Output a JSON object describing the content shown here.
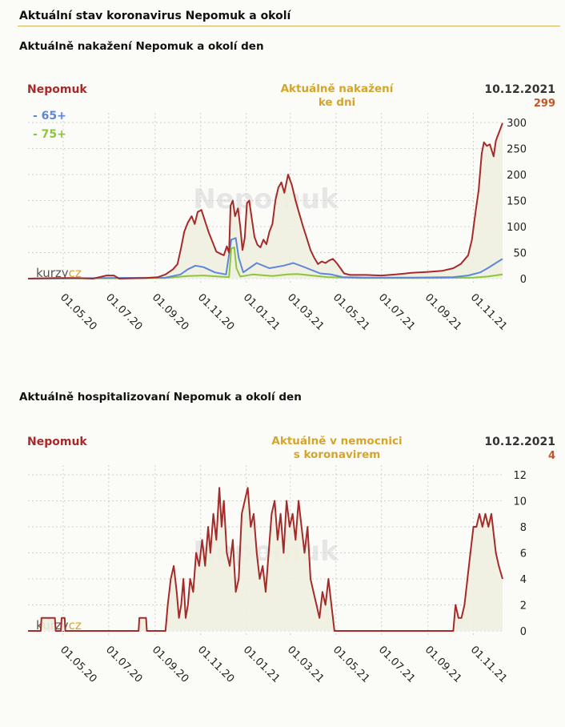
{
  "page": {
    "title": "Aktuální stav koronavirus Nepomuk a okolí"
  },
  "chart_data": [
    {
      "type": "line",
      "section_title": "Aktuálně nakažení Nepomuk a okolí den",
      "location": "Nepomuk",
      "caption_line1": "Aktuálně nakažení",
      "caption_line2": "ke dni",
      "date": "10.12.2021",
      "current_value": "299",
      "watermark": "Nepomuk",
      "brand": "kurzy",
      "brand_suffix": "cz",
      "ylim": [
        0,
        300
      ],
      "yticks": [
        "0",
        "50",
        "100",
        "150",
        "200",
        "250",
        "300"
      ],
      "xtick_labels": [
        "01.05.20",
        "01.07.20",
        "01.09.20",
        "01.11.20",
        "01.01.21",
        "01.03.21",
        "01.05.21",
        "01.07.21",
        "01.09.21",
        "01.11.21"
      ],
      "xtick_dates": [
        "2020-05-01",
        "2020-07-01",
        "2020-09-01",
        "2020-11-01",
        "2021-01-01",
        "2021-03-01",
        "2021-05-01",
        "2021-07-01",
        "2021-09-01",
        "2021-11-01"
      ],
      "x_range": [
        "2020-03-15",
        "2021-12-10"
      ],
      "colors": {
        "main": "#a52b2b",
        "s65": "#5e86d8",
        "s75": "#8cc63a",
        "fill": "#efefe0"
      },
      "series": [
        {
          "name": "Nepomuk",
          "points": [
            [
              "2020-03-15",
              0
            ],
            [
              "2020-04-20",
              1
            ],
            [
              "2020-05-20",
              1
            ],
            [
              "2020-06-10",
              0
            ],
            [
              "2020-06-28",
              6
            ],
            [
              "2020-07-08",
              6
            ],
            [
              "2020-07-15",
              0
            ],
            [
              "2020-08-20",
              1
            ],
            [
              "2020-09-05",
              3
            ],
            [
              "2020-09-15",
              8
            ],
            [
              "2020-09-25",
              18
            ],
            [
              "2020-10-01",
              28
            ],
            [
              "2020-10-06",
              60
            ],
            [
              "2020-10-10",
              90
            ],
            [
              "2020-10-15",
              108
            ],
            [
              "2020-10-20",
              120
            ],
            [
              "2020-10-24",
              105
            ],
            [
              "2020-10-28",
              128
            ],
            [
              "2020-11-02",
              132
            ],
            [
              "2020-11-07",
              110
            ],
            [
              "2020-11-12",
              88
            ],
            [
              "2020-11-17",
              70
            ],
            [
              "2020-11-22",
              52
            ],
            [
              "2020-11-27",
              48
            ],
            [
              "2020-12-02",
              45
            ],
            [
              "2020-12-06",
              62
            ],
            [
              "2020-12-09",
              50
            ],
            [
              "2020-12-11",
              140
            ],
            [
              "2020-12-14",
              150
            ],
            [
              "2020-12-17",
              120
            ],
            [
              "2020-12-21",
              135
            ],
            [
              "2020-12-24",
              100
            ],
            [
              "2020-12-27",
              55
            ],
            [
              "2020-12-30",
              78
            ],
            [
              "2021-01-02",
              145
            ],
            [
              "2021-01-05",
              150
            ],
            [
              "2021-01-08",
              120
            ],
            [
              "2021-01-12",
              80
            ],
            [
              "2021-01-16",
              65
            ],
            [
              "2021-01-20",
              60
            ],
            [
              "2021-01-24",
              75
            ],
            [
              "2021-01-28",
              66
            ],
            [
              "2021-02-01",
              90
            ],
            [
              "2021-02-05",
              105
            ],
            [
              "2021-02-09",
              150
            ],
            [
              "2021-02-13",
              175
            ],
            [
              "2021-02-17",
              185
            ],
            [
              "2021-02-21",
              165
            ],
            [
              "2021-02-26",
              200
            ],
            [
              "2021-03-03",
              180
            ],
            [
              "2021-03-08",
              150
            ],
            [
              "2021-03-13",
              125
            ],
            [
              "2021-03-18",
              100
            ],
            [
              "2021-03-23",
              78
            ],
            [
              "2021-03-28",
              55
            ],
            [
              "2021-04-02",
              40
            ],
            [
              "2021-04-07",
              28
            ],
            [
              "2021-04-12",
              33
            ],
            [
              "2021-04-17",
              30
            ],
            [
              "2021-04-22",
              35
            ],
            [
              "2021-04-27",
              38
            ],
            [
              "2021-05-02",
              30
            ],
            [
              "2021-05-07",
              20
            ],
            [
              "2021-05-12",
              10
            ],
            [
              "2021-05-20",
              7
            ],
            [
              "2021-06-10",
              7
            ],
            [
              "2021-07-01",
              6
            ],
            [
              "2021-07-20",
              8
            ],
            [
              "2021-08-10",
              11
            ],
            [
              "2021-09-01",
              13
            ],
            [
              "2021-09-20",
              15
            ],
            [
              "2021-10-05",
              20
            ],
            [
              "2021-10-15",
              28
            ],
            [
              "2021-10-25",
              45
            ],
            [
              "2021-10-30",
              75
            ],
            [
              "2021-11-04",
              130
            ],
            [
              "2021-11-08",
              170
            ],
            [
              "2021-11-12",
              240
            ],
            [
              "2021-11-15",
              262
            ],
            [
              "2021-11-19",
              255
            ],
            [
              "2021-11-23",
              258
            ],
            [
              "2021-11-28",
              235
            ],
            [
              "2021-12-01",
              265
            ],
            [
              "2021-12-05",
              280
            ],
            [
              "2021-12-10",
              299
            ]
          ]
        },
        {
          "name": "65+",
          "points": [
            [
              "2020-03-15",
              0
            ],
            [
              "2020-09-15",
              2
            ],
            [
              "2020-10-05",
              8
            ],
            [
              "2020-10-15",
              18
            ],
            [
              "2020-10-25",
              25
            ],
            [
              "2020-11-05",
              22
            ],
            [
              "2020-11-20",
              12
            ],
            [
              "2020-12-05",
              8
            ],
            [
              "2020-12-12",
              75
            ],
            [
              "2020-12-18",
              78
            ],
            [
              "2020-12-22",
              40
            ],
            [
              "2020-12-28",
              12
            ],
            [
              "2021-01-05",
              20
            ],
            [
              "2021-01-15",
              30
            ],
            [
              "2021-02-01",
              20
            ],
            [
              "2021-02-20",
              25
            ],
            [
              "2021-03-05",
              30
            ],
            [
              "2021-03-20",
              22
            ],
            [
              "2021-04-10",
              10
            ],
            [
              "2021-04-25",
              8
            ],
            [
              "2021-05-10",
              3
            ],
            [
              "2021-06-10",
              2
            ],
            [
              "2021-08-10",
              2
            ],
            [
              "2021-10-05",
              3
            ],
            [
              "2021-10-25",
              6
            ],
            [
              "2021-11-10",
              12
            ],
            [
              "2021-11-20",
              20
            ],
            [
              "2021-12-01",
              30
            ],
            [
              "2021-12-10",
              38
            ]
          ]
        },
        {
          "name": "75+",
          "points": [
            [
              "2020-03-15",
              0
            ],
            [
              "2020-09-15",
              1
            ],
            [
              "2020-10-15",
              5
            ],
            [
              "2020-11-05",
              6
            ],
            [
              "2020-11-25",
              4
            ],
            [
              "2020-12-09",
              3
            ],
            [
              "2020-12-12",
              58
            ],
            [
              "2020-12-16",
              60
            ],
            [
              "2020-12-19",
              20
            ],
            [
              "2020-12-24",
              4
            ],
            [
              "2021-01-10",
              8
            ],
            [
              "2021-02-05",
              5
            ],
            [
              "2021-02-25",
              8
            ],
            [
              "2021-03-10",
              9
            ],
            [
              "2021-03-30",
              6
            ],
            [
              "2021-04-20",
              3
            ],
            [
              "2021-06-01",
              1
            ],
            [
              "2021-09-01",
              1
            ],
            [
              "2021-11-01",
              2
            ],
            [
              "2021-11-20",
              4
            ],
            [
              "2021-12-10",
              8
            ]
          ]
        }
      ],
      "legend": [
        {
          "label": "- 65+"
        },
        {
          "label": "- 75+"
        }
      ]
    },
    {
      "type": "line",
      "section_title": "Aktuálně hospitalizovaní Nepomuk a okolí den",
      "location": "Nepomuk",
      "caption_line1": "Aktuálně v nemocnici",
      "caption_line2": "s koronavirem",
      "date": "10.12.2021",
      "current_value": "4",
      "watermark": "Nepomuk",
      "brand": "kurzy",
      "brand_suffix": "cz",
      "ylim": [
        0,
        12
      ],
      "yticks": [
        "0",
        "2",
        "4",
        "6",
        "8",
        "10",
        "12"
      ],
      "xtick_labels": [
        "01.05.20",
        "01.07.20",
        "01.09.20",
        "01.11.20",
        "01.01.21",
        "01.03.21",
        "01.05.21",
        "01.07.21",
        "01.09.21",
        "01.11.21"
      ],
      "xtick_dates": [
        "2020-05-01",
        "2020-07-01",
        "2020-09-01",
        "2020-11-01",
        "2021-01-01",
        "2021-03-01",
        "2021-05-01",
        "2021-07-01",
        "2021-09-01",
        "2021-11-01"
      ],
      "x_range": [
        "2020-03-15",
        "2021-12-10"
      ],
      "colors": {
        "main": "#a52b2b",
        "fill": "#efefe0"
      },
      "series": [
        {
          "name": "Nepomuk",
          "points": [
            [
              "2020-03-15",
              0
            ],
            [
              "2020-04-01",
              0
            ],
            [
              "2020-04-02",
              1
            ],
            [
              "2020-04-20",
              1
            ],
            [
              "2020-04-21",
              0
            ],
            [
              "2020-04-28",
              0
            ],
            [
              "2020-04-29",
              1
            ],
            [
              "2020-05-03",
              1
            ],
            [
              "2020-05-04",
              0
            ],
            [
              "2020-08-10",
              0
            ],
            [
              "2020-08-11",
              1
            ],
            [
              "2020-08-20",
              1
            ],
            [
              "2020-08-21",
              0
            ],
            [
              "2020-09-15",
              0
            ],
            [
              "2020-09-18",
              2
            ],
            [
              "2020-09-22",
              4
            ],
            [
              "2020-09-26",
              5
            ],
            [
              "2020-09-30",
              3
            ],
            [
              "2020-10-03",
              1
            ],
            [
              "2020-10-06",
              2
            ],
            [
              "2020-10-09",
              4
            ],
            [
              "2020-10-12",
              1
            ],
            [
              "2020-10-15",
              2
            ],
            [
              "2020-10-18",
              4
            ],
            [
              "2020-10-22",
              3
            ],
            [
              "2020-10-26",
              6
            ],
            [
              "2020-10-30",
              5
            ],
            [
              "2020-11-03",
              7
            ],
            [
              "2020-11-07",
              5
            ],
            [
              "2020-11-11",
              8
            ],
            [
              "2020-11-14",
              6
            ],
            [
              "2020-11-18",
              9
            ],
            [
              "2020-11-22",
              7
            ],
            [
              "2020-11-26",
              11
            ],
            [
              "2020-11-29",
              8
            ],
            [
              "2020-12-02",
              10
            ],
            [
              "2020-12-06",
              6
            ],
            [
              "2020-12-10",
              5
            ],
            [
              "2020-12-14",
              7
            ],
            [
              "2020-12-18",
              3
            ],
            [
              "2020-12-22",
              4
            ],
            [
              "2020-12-26",
              9
            ],
            [
              "2020-12-30",
              10
            ],
            [
              "2021-01-03",
              11
            ],
            [
              "2021-01-07",
              8
            ],
            [
              "2021-01-11",
              9
            ],
            [
              "2021-01-15",
              6
            ],
            [
              "2021-01-19",
              4
            ],
            [
              "2021-01-23",
              5
            ],
            [
              "2021-01-27",
              3
            ],
            [
              "2021-01-31",
              6
            ],
            [
              "2021-02-04",
              9
            ],
            [
              "2021-02-08",
              10
            ],
            [
              "2021-02-12",
              7
            ],
            [
              "2021-02-16",
              9
            ],
            [
              "2021-02-20",
              6
            ],
            [
              "2021-02-24",
              10
            ],
            [
              "2021-02-28",
              8
            ],
            [
              "2021-03-04",
              9
            ],
            [
              "2021-03-08",
              7
            ],
            [
              "2021-03-12",
              10
            ],
            [
              "2021-03-16",
              8
            ],
            [
              "2021-03-20",
              6
            ],
            [
              "2021-03-24",
              8
            ],
            [
              "2021-03-28",
              4
            ],
            [
              "2021-04-01",
              3
            ],
            [
              "2021-04-05",
              2
            ],
            [
              "2021-04-09",
              1
            ],
            [
              "2021-04-13",
              3
            ],
            [
              "2021-04-17",
              2
            ],
            [
              "2021-04-21",
              4
            ],
            [
              "2021-04-25",
              2
            ],
            [
              "2021-04-29",
              0
            ],
            [
              "2021-10-05",
              0
            ],
            [
              "2021-10-08",
              2
            ],
            [
              "2021-10-12",
              1
            ],
            [
              "2021-10-16",
              1
            ],
            [
              "2021-10-20",
              2
            ],
            [
              "2021-10-24",
              4
            ],
            [
              "2021-10-28",
              6
            ],
            [
              "2021-11-01",
              8
            ],
            [
              "2021-11-05",
              8
            ],
            [
              "2021-11-09",
              9
            ],
            [
              "2021-11-13",
              8
            ],
            [
              "2021-11-17",
              9
            ],
            [
              "2021-11-21",
              8
            ],
            [
              "2021-11-25",
              9
            ],
            [
              "2021-12-01",
              6
            ],
            [
              "2021-12-05",
              5
            ],
            [
              "2021-12-10",
              4
            ]
          ]
        }
      ]
    }
  ]
}
